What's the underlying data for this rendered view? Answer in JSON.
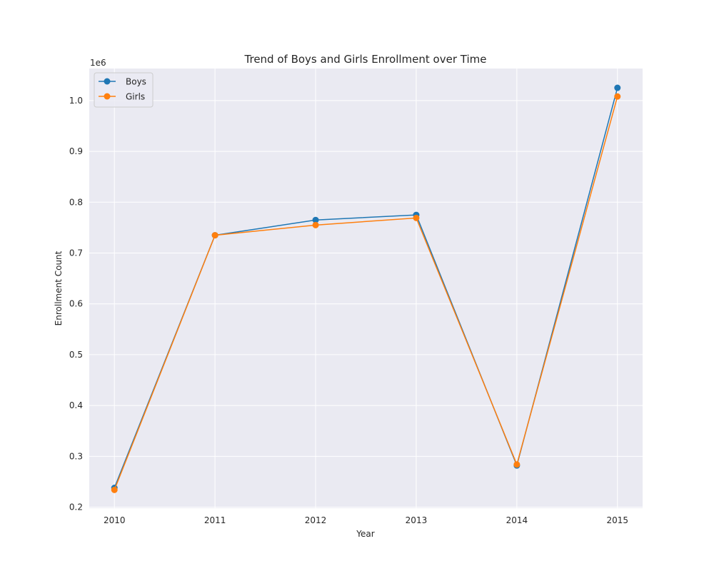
{
  "chart_data": {
    "type": "line",
    "title": "Trend of Boys and Girls Enrollment over Time",
    "xlabel": "Year",
    "ylabel": "Enrollment Count",
    "y_offset_label": "1e6",
    "x": [
      2010,
      2011,
      2012,
      2013,
      2014,
      2015
    ],
    "x_tick_labels": [
      "2010",
      "2011",
      "2012",
      "2013",
      "2014",
      "2015"
    ],
    "y_ticks": [
      0.2,
      0.3,
      0.4,
      0.5,
      0.6,
      0.7,
      0.8,
      0.9,
      1.0
    ],
    "y_tick_labels": [
      "0.2",
      "0.3",
      "0.4",
      "0.5",
      "0.6",
      "0.7",
      "0.8",
      "0.9",
      "1.0"
    ],
    "xlim": [
      2009.75,
      2015.25
    ],
    "ylim": [
      0.198,
      1.063
    ],
    "grid": true,
    "legend_position": "upper-left",
    "series": [
      {
        "name": "Boys",
        "color": "#1f77b4",
        "values": [
          0.238,
          0.735,
          0.765,
          0.775,
          0.282,
          1.025
        ]
      },
      {
        "name": "Girls",
        "color": "#ff7f0e",
        "values": [
          0.234,
          0.735,
          0.755,
          0.769,
          0.284,
          1.008
        ]
      }
    ]
  }
}
